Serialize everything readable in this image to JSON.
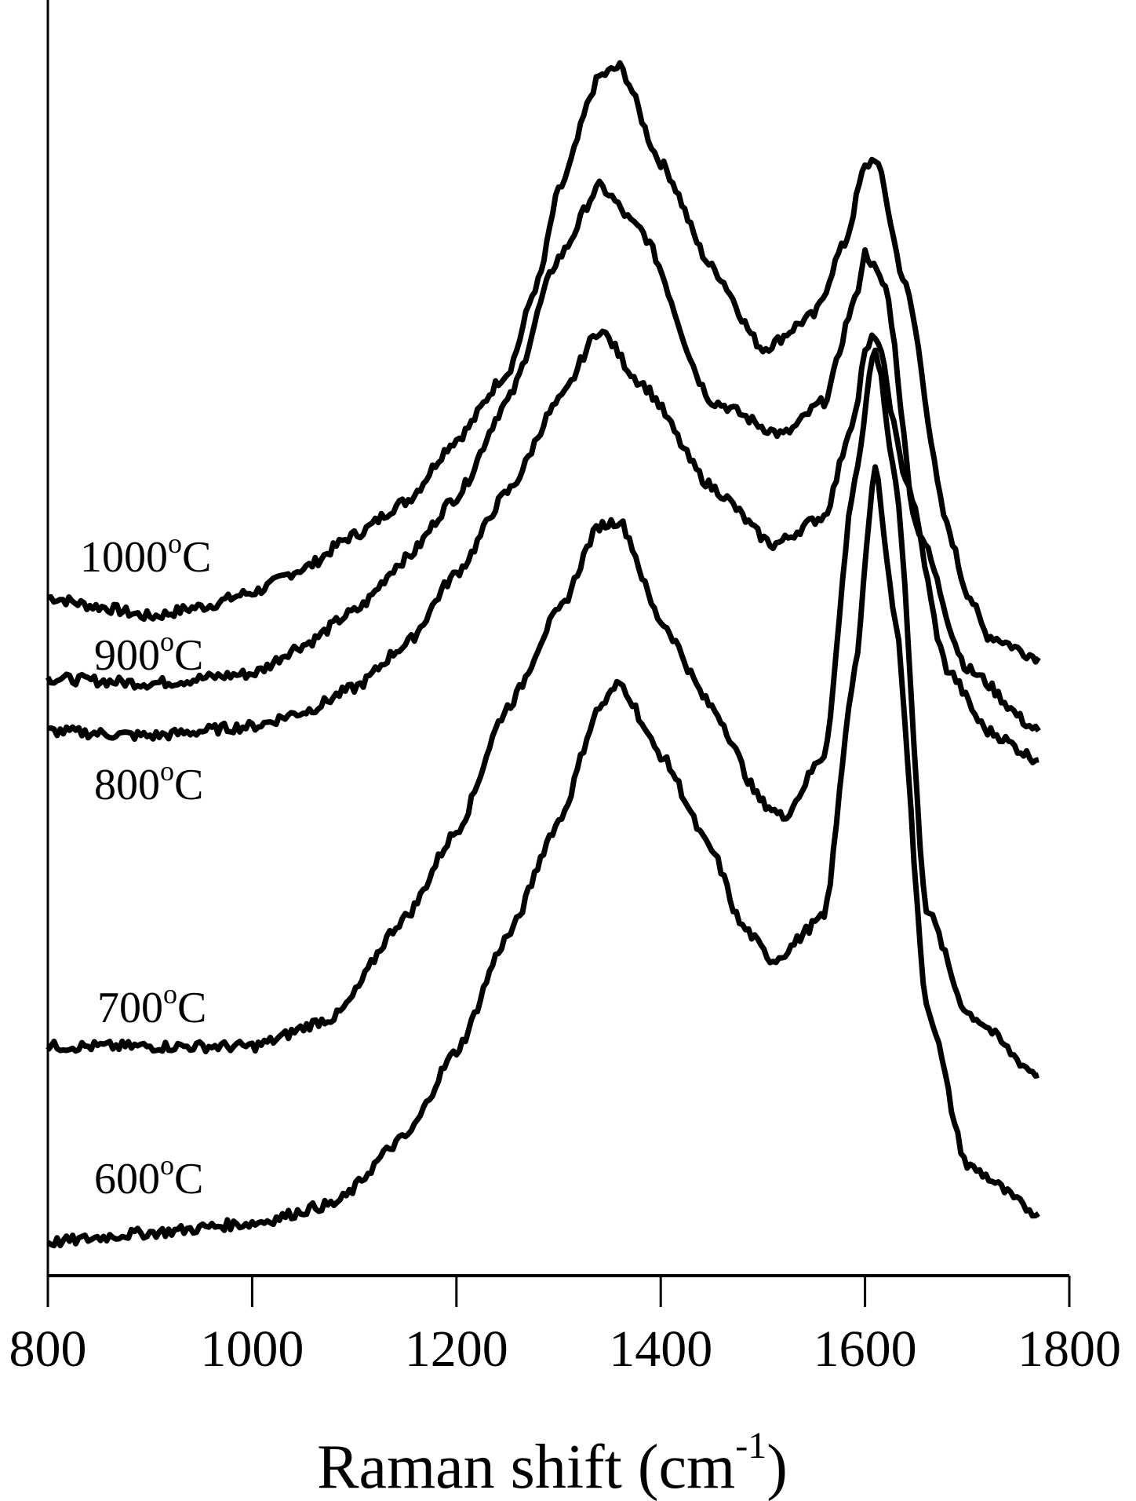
{
  "chart_data": {
    "type": "line",
    "title": "",
    "xlabel": "Raman shift (cm",
    "xlabel_sup": "-1",
    "xlabel_end": ")",
    "ylabel": "",
    "xlim": [
      800,
      1800
    ],
    "ylim": [
      0,
      133.5
    ],
    "y_units": "arbitrary (offset intensity)",
    "grid": false,
    "xticks": [
      "800",
      "1000",
      "1200",
      "1400",
      "1600",
      "1800"
    ],
    "xtick_values": [
      800,
      1000,
      1200,
      1400,
      1600,
      1800
    ],
    "x": [
      800,
      1000,
      1100,
      1200,
      1250,
      1300,
      1340,
      1360,
      1400,
      1450,
      1500,
      1520,
      1560,
      1590,
      1610,
      1630,
      1660,
      1700,
      1770
    ],
    "series": [
      {
        "name": "1000°C",
        "label": "1000",
        "label_sup": "o",
        "label_end": "C",
        "points": [
          [
            800,
            71
          ],
          [
            850,
            70
          ],
          [
            900,
            69
          ],
          [
            950,
            70
          ],
          [
            1000,
            71.5
          ],
          [
            1050,
            74
          ],
          [
            1100,
            77.5
          ],
          [
            1150,
            81
          ],
          [
            1200,
            87.5
          ],
          [
            1250,
            94.5
          ],
          [
            1280,
            104
          ],
          [
            1300,
            113.5
          ],
          [
            1340,
            125.5
          ],
          [
            1360,
            126.5
          ],
          [
            1400,
            116.5
          ],
          [
            1450,
            105.5
          ],
          [
            1500,
            97
          ],
          [
            1550,
            100.5
          ],
          [
            1580,
            108
          ],
          [
            1600,
            116
          ],
          [
            1610,
            117
          ],
          [
            1640,
            103.5
          ],
          [
            1680,
            78.5
          ],
          [
            1700,
            71.5
          ],
          [
            1720,
            67
          ],
          [
            1770,
            64.7
          ]
        ]
      },
      {
        "name": "900°C",
        "label": "900",
        "label_sup": "o",
        "label_end": "C",
        "points": [
          [
            800,
            62.5
          ],
          [
            900,
            62
          ],
          [
            1000,
            63
          ],
          [
            1050,
            66
          ],
          [
            1100,
            69.5
          ],
          [
            1150,
            75
          ],
          [
            1200,
            81.5
          ],
          [
            1250,
            91.5
          ],
          [
            1300,
            106.5
          ],
          [
            1340,
            114
          ],
          [
            1380,
            109.5
          ],
          [
            1450,
            91.5
          ],
          [
            1520,
            88
          ],
          [
            1560,
            91.5
          ],
          [
            1590,
            102
          ],
          [
            1600,
            107
          ],
          [
            1620,
            103.5
          ],
          [
            1650,
            78.5
          ],
          [
            1700,
            63.5
          ],
          [
            1770,
            57
          ]
        ]
      },
      {
        "name": "800°C",
        "label": "800",
        "label_sup": "o",
        "label_end": "C",
        "points": [
          [
            800,
            57
          ],
          [
            900,
            56.5
          ],
          [
            1000,
            57.5
          ],
          [
            1050,
            59
          ],
          [
            1100,
            61.5
          ],
          [
            1150,
            66
          ],
          [
            1200,
            73.5
          ],
          [
            1250,
            82
          ],
          [
            1300,
            91.5
          ],
          [
            1340,
            99
          ],
          [
            1380,
            93.5
          ],
          [
            1450,
            82.5
          ],
          [
            1510,
            76.5
          ],
          [
            1560,
            79.5
          ],
          [
            1590,
            90
          ],
          [
            1600,
            96.5
          ],
          [
            1610,
            98.5
          ],
          [
            1640,
            83.5
          ],
          [
            1680,
            63.5
          ],
          [
            1720,
            57
          ],
          [
            1770,
            54
          ]
        ]
      },
      {
        "name": "700°C",
        "label": "700",
        "label_sup": "o",
        "label_end": "C",
        "points": [
          [
            800,
            24
          ],
          [
            900,
            24
          ],
          [
            1000,
            24
          ],
          [
            1080,
            27
          ],
          [
            1150,
            37.5
          ],
          [
            1200,
            46.5
          ],
          [
            1250,
            59.5
          ],
          [
            1300,
            69.5
          ],
          [
            1340,
            78.5
          ],
          [
            1360,
            79
          ],
          [
            1400,
            68.5
          ],
          [
            1450,
            59.5
          ],
          [
            1500,
            49.5
          ],
          [
            1520,
            48
          ],
          [
            1560,
            54.5
          ],
          [
            1590,
            83.5
          ],
          [
            1610,
            97
          ],
          [
            1630,
            83.5
          ],
          [
            1660,
            38.5
          ],
          [
            1700,
            27.5
          ],
          [
            1770,
            21
          ]
        ]
      },
      {
        "name": "600°C",
        "label": "600",
        "label_sup": "o",
        "label_end": "C",
        "points": [
          [
            800,
            3.5
          ],
          [
            900,
            4.5
          ],
          [
            1000,
            5.5
          ],
          [
            1080,
            7.5
          ],
          [
            1150,
            14.5
          ],
          [
            1200,
            23.5
          ],
          [
            1250,
            35.5
          ],
          [
            1300,
            47.5
          ],
          [
            1340,
            59.5
          ],
          [
            1360,
            62
          ],
          [
            1400,
            54.5
          ],
          [
            1450,
            44.5
          ],
          [
            1480,
            36.5
          ],
          [
            1510,
            33
          ],
          [
            1560,
            37.5
          ],
          [
            1590,
            63.5
          ],
          [
            1610,
            84.5
          ],
          [
            1630,
            68.5
          ],
          [
            1660,
            28.5
          ],
          [
            1700,
            11.5
          ],
          [
            1770,
            6.5
          ]
        ]
      }
    ],
    "legend": "inline labels at left of each curve"
  }
}
